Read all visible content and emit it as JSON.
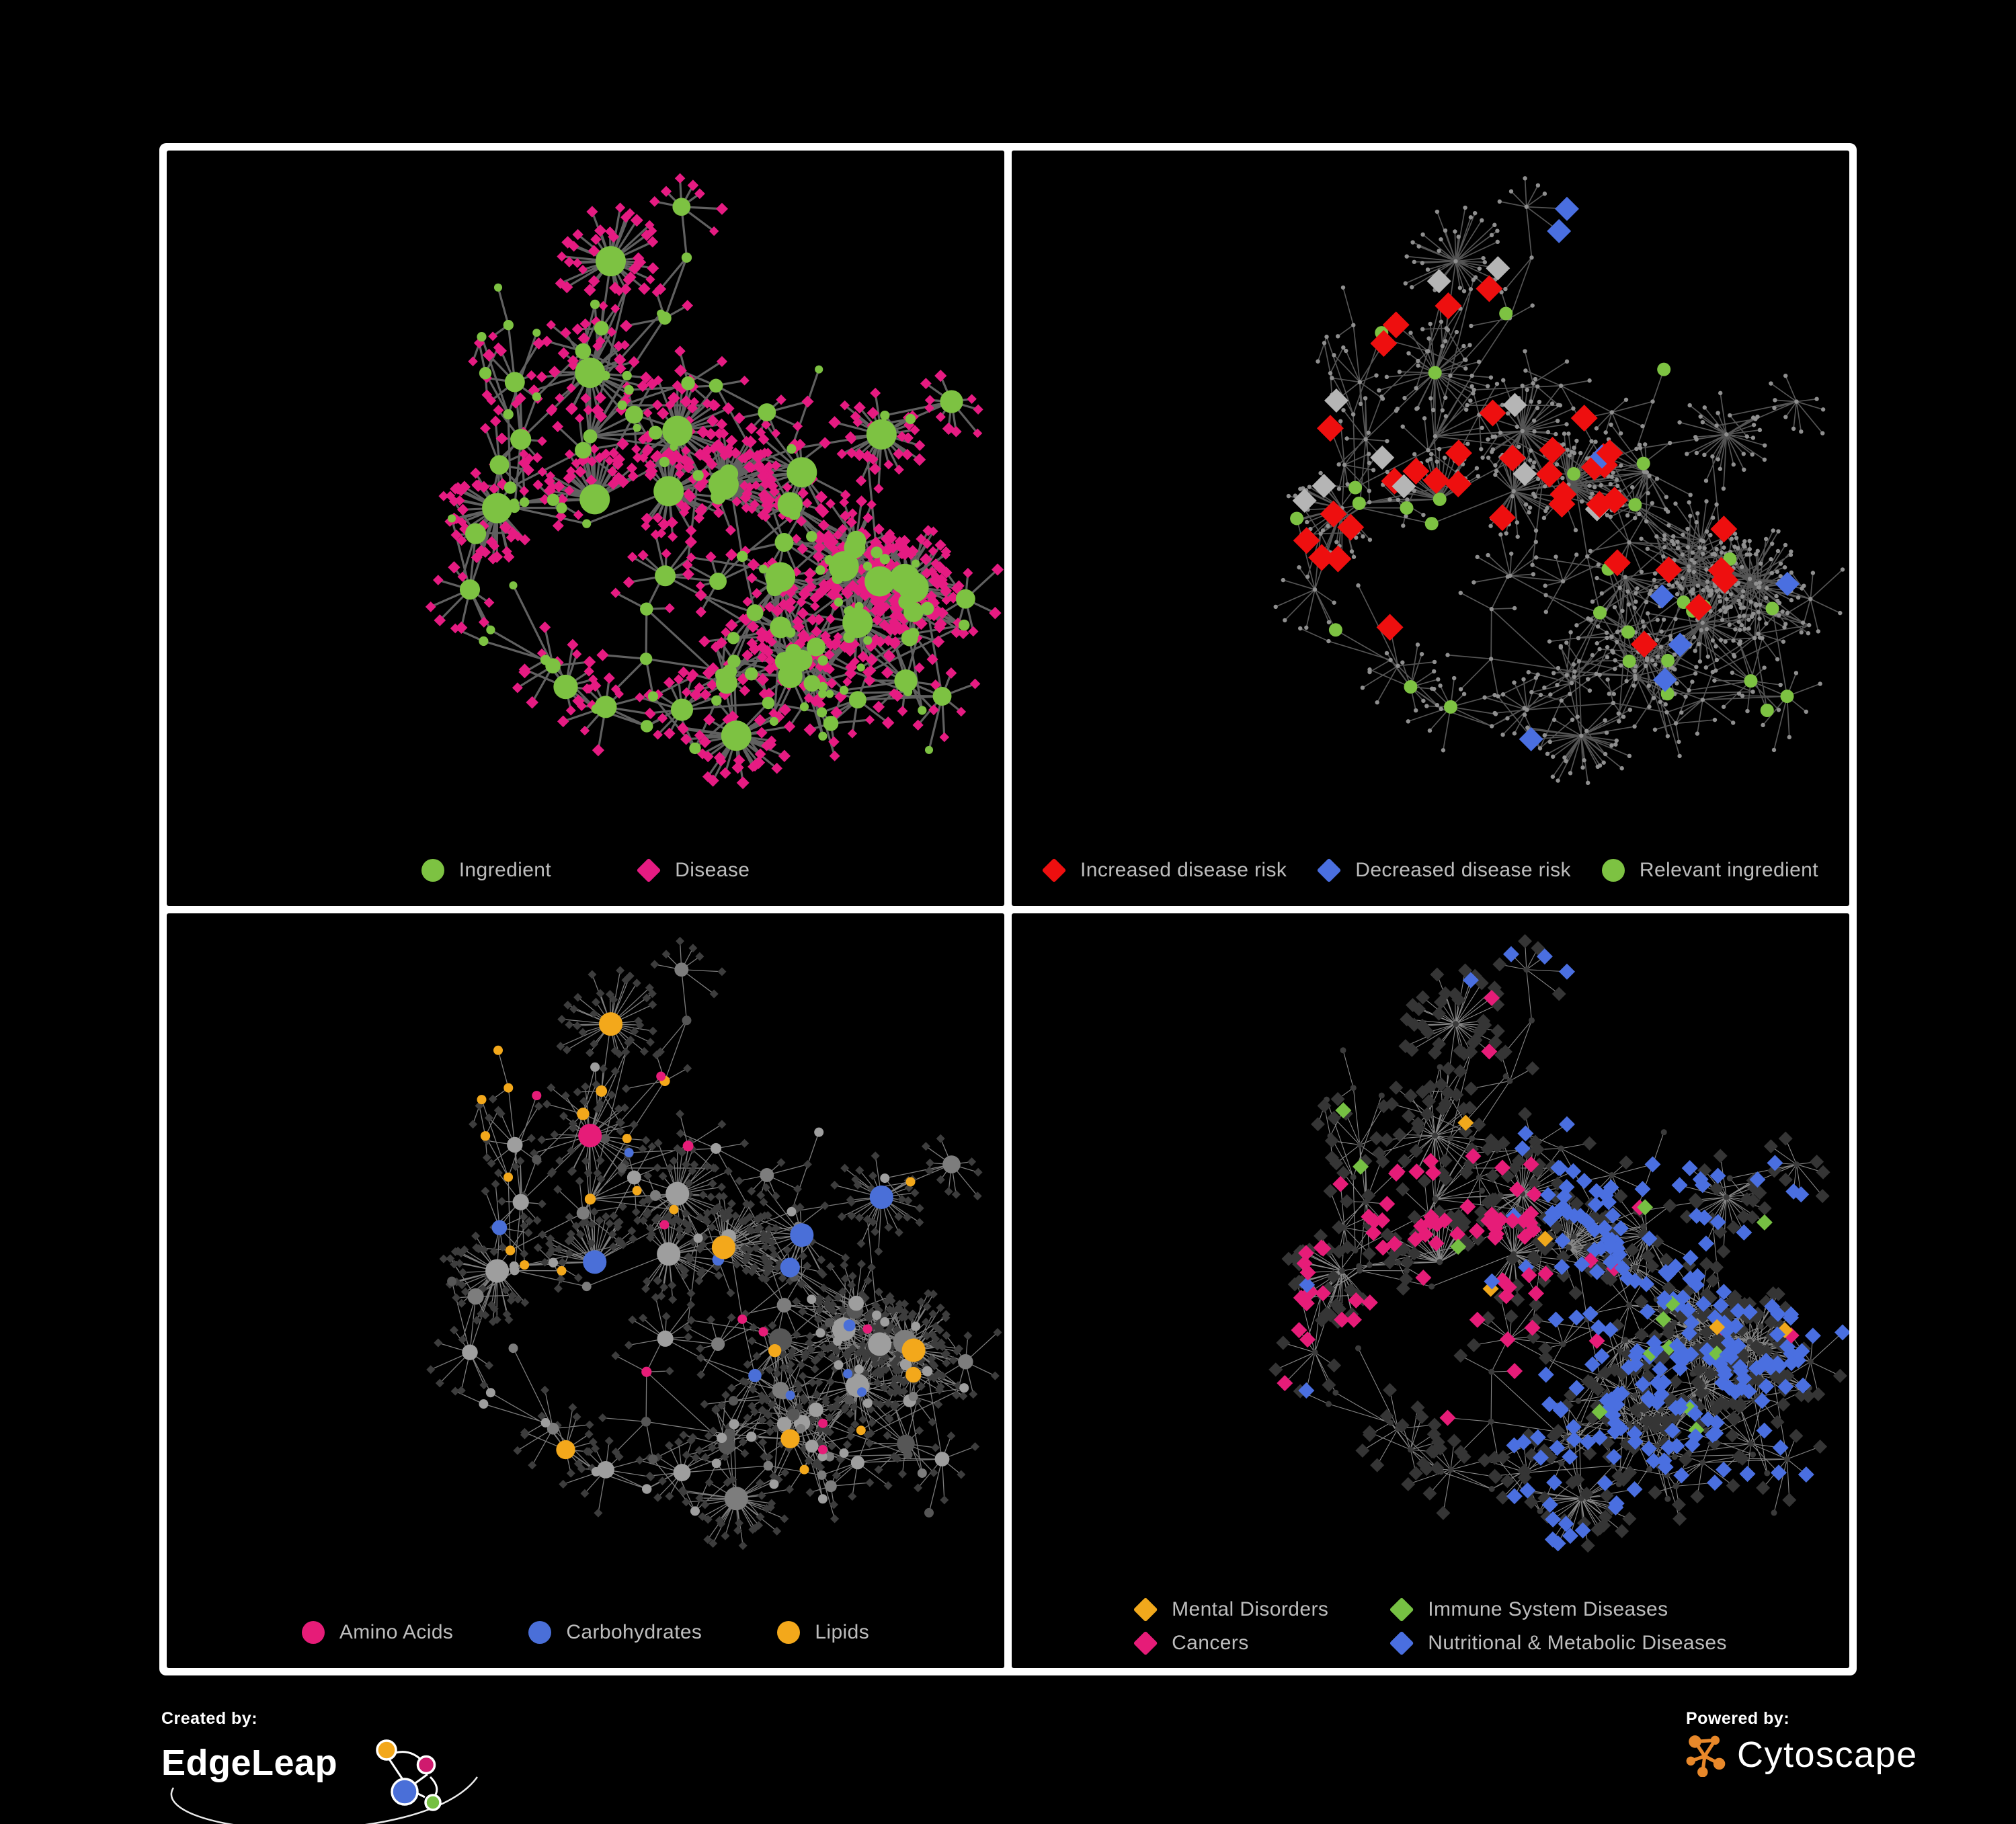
{
  "page": {
    "background": "#000000",
    "panel_border": "#ffffff"
  },
  "panels": [
    {
      "legend": [
        {
          "label": "Ingredient",
          "shape": "circle",
          "color": "#7dc242"
        },
        {
          "label": "Disease",
          "shape": "diamond",
          "color": "#e61b82"
        }
      ],
      "style": {
        "edge": "#6a6a6a",
        "edge_width": 3.2,
        "ingredient_fill": "#7dc242",
        "disease_fill": "#e61b82"
      }
    },
    {
      "legend": [
        {
          "label": "Increased disease risk",
          "shape": "diamond",
          "color": "#ee0f0f"
        },
        {
          "label": "Decreased disease risk",
          "shape": "diamond",
          "color": "#4a6fe0"
        },
        {
          "label": "Relevant ingredient",
          "shape": "circle",
          "color": "#7dc242"
        }
      ],
      "style": {
        "edge": "#5d5d5d",
        "edge_width": 1.7,
        "base_node": "#8f8f8f",
        "increased": "#ee0f0f",
        "decreased": "#4a6fe0",
        "mixed": "#b5b5b5",
        "relevant": "#7dc242"
      }
    },
    {
      "legend": [
        {
          "label": "Amino Acids",
          "shape": "circle",
          "color": "#e61c78"
        },
        {
          "label": "Carbohydrates",
          "shape": "circle",
          "color": "#4a6fd8"
        },
        {
          "label": "Lipids",
          "shape": "circle",
          "color": "#f3a81b"
        }
      ],
      "style": {
        "edge": "#8a8a8a",
        "edge_width": 1.3,
        "disease_fill": "#3d3d3d",
        "gray_shades": [
          "#9e9e9e",
          "#7d7d7d",
          "#565656"
        ],
        "amino": "#e61c78",
        "carbohydrate": "#4a6fd8",
        "lipid": "#f3a81b"
      }
    },
    {
      "legend": [
        {
          "label": "Mental Disorders",
          "shape": "diamond",
          "color": "#f0a81c"
        },
        {
          "label": "Immune System Diseases",
          "shape": "diamond",
          "color": "#76c043"
        },
        {
          "label": "Cancers",
          "shape": "diamond",
          "color": "#e61c78"
        },
        {
          "label": "Nutritional & Metabolic Diseases",
          "shape": "diamond",
          "color": "#4a6fe0"
        }
      ],
      "style": {
        "edge": "#969696",
        "edge_width": 1.1,
        "base_ingredient": "#3b3b3b",
        "base_disease": "#353535",
        "mental": "#f0a81c",
        "immune": "#76c043",
        "cancer": "#e61c78",
        "nutritional": "#4a6fe0"
      }
    }
  ],
  "footer": {
    "created_by": "Created by:",
    "brand": "EdgeLeap",
    "powered_by": "Powered by:",
    "engine": "Cytoscape",
    "edgeleap_colors": {
      "orange": "#f3a81b",
      "pink": "#cf1a6e",
      "blue": "#4a6fd8",
      "green": "#76c043"
    },
    "cytoscape_orange": "#e8882a"
  },
  "chart_data": {
    "type": "network",
    "description": "One bipartite nutrition network (ingredient nodes drawn as circles, disease nodes drawn as diamonds, connected by gray edges) shown in four styling views on a black background.",
    "views": [
      {
        "panel": 1,
        "coloring": "all nodes colored",
        "legend": [
          "Ingredient",
          "Disease"
        ]
      },
      {
        "panel": 2,
        "coloring": "highlighted subset over small gray dots",
        "legend": [
          "Increased disease risk",
          "Decreased disease risk",
          "Relevant ingredient"
        ]
      },
      {
        "panel": 3,
        "coloring": "ingredient circles colored by nutrient class; diseases as small dark diamonds",
        "legend": [
          "Amino Acids",
          "Carbohydrates",
          "Lipids"
        ]
      },
      {
        "panel": 4,
        "coloring": "disease diamonds colored by disease category; other nodes dark gray",
        "legend": [
          "Mental Disorders",
          "Immune System Diseases",
          "Cancers",
          "Nutritional & Metabolic Diseases"
        ]
      }
    ],
    "approx_counts": {
      "ingredient_nodes": 150,
      "disease_nodes": 600,
      "edges": 800
    },
    "layout_hint": "organic force-directed clusters with hub-and-spoke star bursts and long branching arms"
  }
}
